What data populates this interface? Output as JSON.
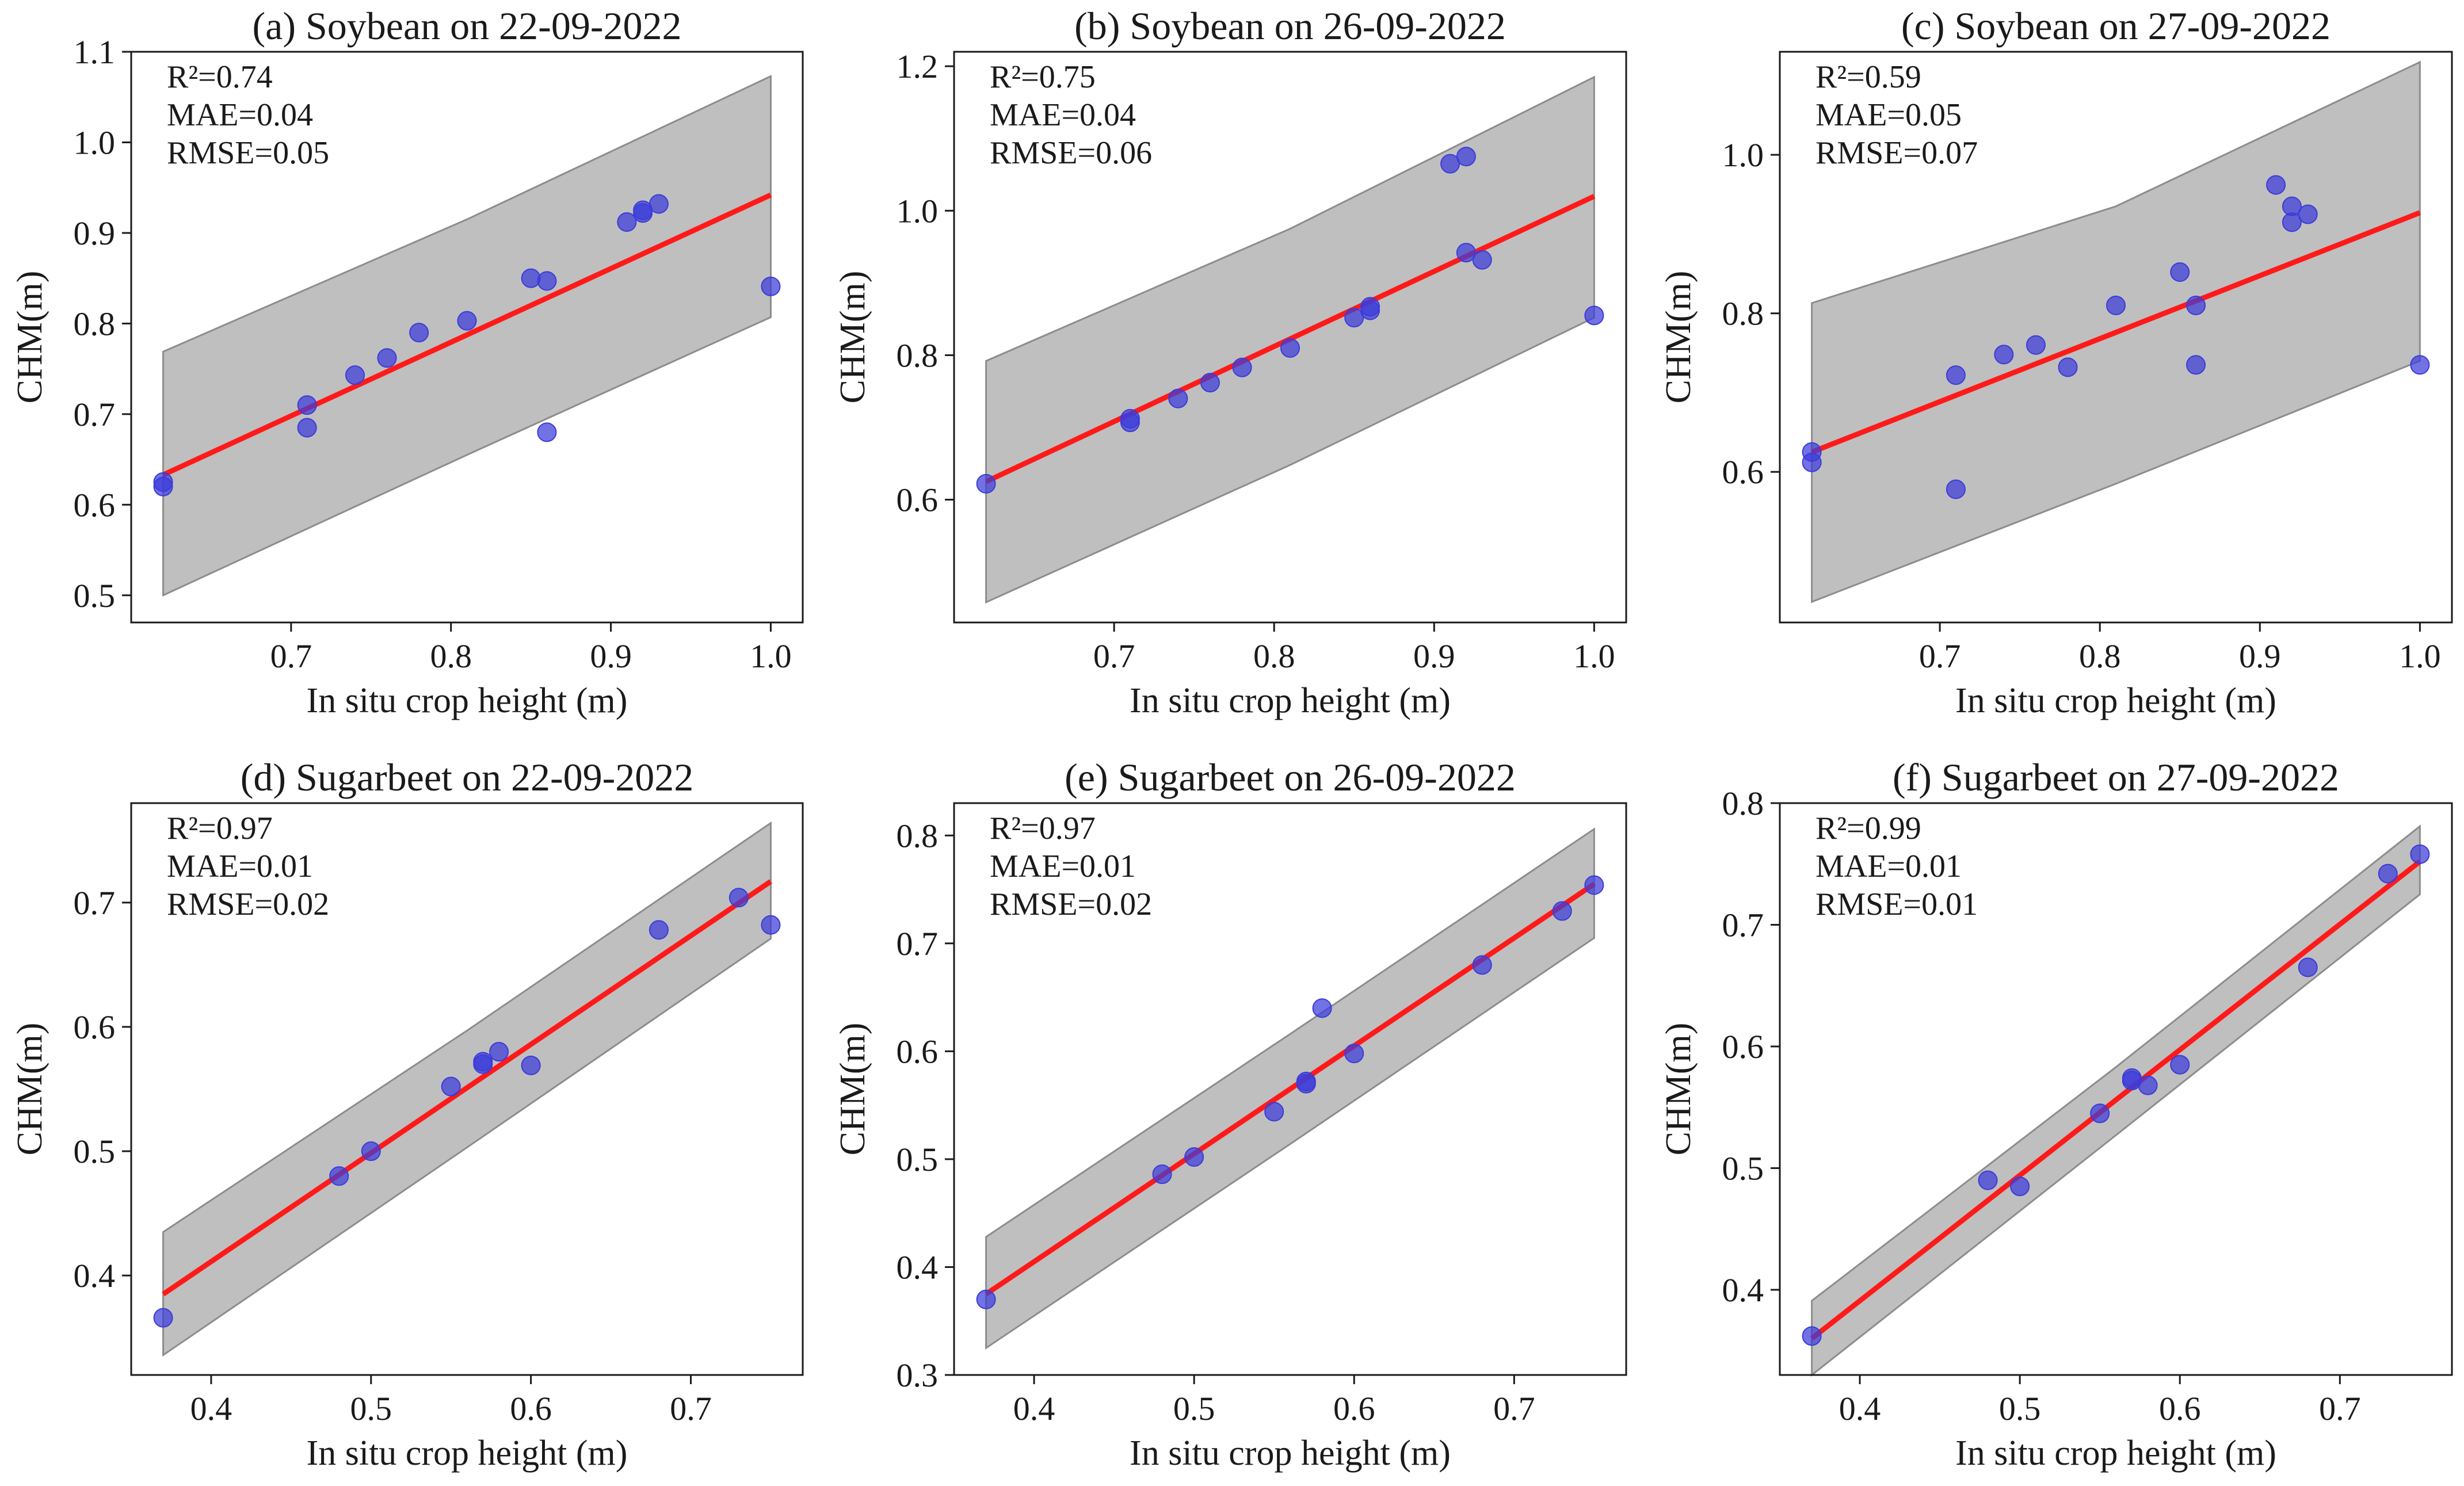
{
  "figure": {
    "colors": {
      "points": "#3b3bd9",
      "fit_line": "#ff1a1a",
      "band": "#bfbfbf",
      "band_edge": "#8c8c8c",
      "axes": "#1a1a1a"
    }
  },
  "chart_data": [
    {
      "type": "scatter",
      "title": "(a) Soybean on 22-09-2022",
      "xlabel": "In situ crop height (m)",
      "ylabel": "CHM(m)",
      "xlim": [
        0.6,
        1.02
      ],
      "ylim": [
        0.47,
        1.1
      ],
      "xticks": [
        0.7,
        0.8,
        0.9,
        1.0
      ],
      "xtick_labels": [
        "0.7",
        "0.8",
        "0.9",
        "1.0"
      ],
      "yticks": [
        0.5,
        0.6,
        0.7,
        0.8,
        0.9,
        1.0,
        1.1
      ],
      "ytick_labels": [
        "0.5",
        "0.6",
        "0.7",
        "0.8",
        "0.9",
        "1.0",
        "1.1"
      ],
      "stats": {
        "r2": "R²=0.74",
        "mae": "MAE=0.04",
        "rmse": "RMSE=0.05"
      },
      "fit": {
        "x0": 0.62,
        "y0": 0.633,
        "x1": 1.0,
        "y1": 0.942
      },
      "band": {
        "lower": [
          [
            0.62,
            0.5
          ],
          [
            0.81,
            0.655
          ],
          [
            1.0,
            0.807
          ]
        ],
        "upper": [
          [
            0.62,
            0.769
          ],
          [
            0.81,
            0.915
          ],
          [
            1.0,
            1.073
          ]
        ]
      },
      "x": [
        0.62,
        0.62,
        0.71,
        0.71,
        0.74,
        0.76,
        0.78,
        0.81,
        0.85,
        0.86,
        0.86,
        0.91,
        0.92,
        0.92,
        0.93,
        1.0
      ],
      "y": [
        0.625,
        0.62,
        0.71,
        0.685,
        0.743,
        0.762,
        0.79,
        0.803,
        0.85,
        0.847,
        0.68,
        0.912,
        0.922,
        0.925,
        0.932,
        0.841
      ]
    },
    {
      "type": "scatter",
      "title": "(b) Soybean on 26-09-2022",
      "xlabel": "In situ crop height (m)",
      "ylabel": "CHM(m)",
      "xlim": [
        0.6,
        1.02
      ],
      "ylim": [
        0.43,
        1.22
      ],
      "xticks": [
        0.7,
        0.8,
        0.9,
        1.0
      ],
      "xtick_labels": [
        "0.7",
        "0.8",
        "0.9",
        "1.0"
      ],
      "yticks": [
        0.6,
        0.8,
        1.0,
        1.2
      ],
      "ytick_labels": [
        "0.6",
        "0.8",
        "1.0",
        "1.2"
      ],
      "stats": {
        "r2": "R²=0.75",
        "mae": "MAE=0.04",
        "rmse": "RMSE=0.06"
      },
      "fit": {
        "x0": 0.62,
        "y0": 0.625,
        "x1": 1.0,
        "y1": 1.02
      },
      "band": {
        "lower": [
          [
            0.62,
            0.458
          ],
          [
            0.81,
            0.648
          ],
          [
            1.0,
            0.852
          ]
        ],
        "upper": [
          [
            0.62,
            0.792
          ],
          [
            0.81,
            0.975
          ],
          [
            1.0,
            1.185
          ]
        ]
      },
      "x": [
        0.62,
        0.71,
        0.71,
        0.74,
        0.76,
        0.78,
        0.81,
        0.85,
        0.86,
        0.86,
        0.91,
        0.92,
        0.92,
        0.93,
        1.0
      ],
      "y": [
        0.622,
        0.707,
        0.712,
        0.74,
        0.762,
        0.783,
        0.81,
        0.852,
        0.862,
        0.867,
        1.065,
        1.075,
        0.942,
        0.932,
        0.855
      ]
    },
    {
      "type": "scatter",
      "title": "(c) Soybean on 27-09-2022",
      "xlabel": "In situ crop height (m)",
      "ylabel": "CHM(m)",
      "xlim": [
        0.6,
        1.02
      ],
      "ylim": [
        0.41,
        1.13
      ],
      "xticks": [
        0.7,
        0.8,
        0.9,
        1.0
      ],
      "xtick_labels": [
        "0.7",
        "0.8",
        "0.9",
        "1.0"
      ],
      "yticks": [
        0.6,
        0.8,
        1.0
      ],
      "ytick_labels": [
        "0.6",
        "0.8",
        "1.0"
      ],
      "stats": {
        "r2": "R²=0.59",
        "mae": "MAE=0.05",
        "rmse": "RMSE=0.07"
      },
      "fit": {
        "x0": 0.62,
        "y0": 0.625,
        "x1": 1.0,
        "y1": 0.927
      },
      "band": {
        "lower": [
          [
            0.62,
            0.436
          ],
          [
            0.81,
            0.585
          ],
          [
            1.0,
            0.74
          ]
        ],
        "upper": [
          [
            0.62,
            0.813
          ],
          [
            0.81,
            0.935
          ],
          [
            1.0,
            1.117
          ]
        ]
      },
      "x": [
        0.62,
        0.62,
        0.71,
        0.71,
        0.74,
        0.76,
        0.78,
        0.81,
        0.85,
        0.86,
        0.86,
        0.91,
        0.92,
        0.92,
        0.93,
        1.0
      ],
      "y": [
        0.625,
        0.612,
        0.722,
        0.578,
        0.748,
        0.76,
        0.732,
        0.81,
        0.852,
        0.81,
        0.735,
        0.962,
        0.935,
        0.915,
        0.925,
        0.735
      ]
    },
    {
      "type": "scatter",
      "title": "(d) Sugarbeet on 22-09-2022",
      "xlabel": "In situ crop height (m)",
      "ylabel": "CHM(m)",
      "xlim": [
        0.35,
        0.77
      ],
      "ylim": [
        0.32,
        0.78
      ],
      "xticks": [
        0.4,
        0.5,
        0.6,
        0.7
      ],
      "xtick_labels": [
        "0.4",
        "0.5",
        "0.6",
        "0.7"
      ],
      "yticks": [
        0.4,
        0.5,
        0.6,
        0.7
      ],
      "ytick_labels": [
        "0.4",
        "0.5",
        "0.6",
        "0.7"
      ],
      "stats": {
        "r2": "R²=0.97",
        "mae": "MAE=0.01",
        "rmse": "RMSE=0.02"
      },
      "fit": {
        "x0": 0.37,
        "y0": 0.385,
        "x1": 0.75,
        "y1": 0.717
      },
      "band": {
        "lower": [
          [
            0.37,
            0.336
          ],
          [
            0.56,
            0.503
          ],
          [
            0.75,
            0.671
          ]
        ],
        "upper": [
          [
            0.37,
            0.435
          ],
          [
            0.56,
            0.597
          ],
          [
            0.75,
            0.764
          ]
        ]
      },
      "x": [
        0.37,
        0.48,
        0.5,
        0.55,
        0.57,
        0.57,
        0.58,
        0.6,
        0.68,
        0.73,
        0.75
      ],
      "y": [
        0.366,
        0.48,
        0.5,
        0.552,
        0.57,
        0.572,
        0.58,
        0.569,
        0.678,
        0.704,
        0.682
      ]
    },
    {
      "type": "scatter",
      "title": "(e) Sugarbeet on 26-09-2022",
      "xlabel": "In situ crop height (m)",
      "ylabel": "CHM(m)",
      "xlim": [
        0.35,
        0.77
      ],
      "ylim": [
        0.3,
        0.83
      ],
      "xticks": [
        0.4,
        0.5,
        0.6,
        0.7
      ],
      "xtick_labels": [
        "0.4",
        "0.5",
        "0.6",
        "0.7"
      ],
      "yticks": [
        0.3,
        0.4,
        0.5,
        0.6,
        0.7,
        0.8
      ],
      "ytick_labels": [
        "0.3",
        "0.4",
        "0.5",
        "0.6",
        "0.7",
        "0.8"
      ],
      "stats": {
        "r2": "R²=0.97",
        "mae": "MAE=0.01",
        "rmse": "RMSE=0.02"
      },
      "fit": {
        "x0": 0.37,
        "y0": 0.375,
        "x1": 0.75,
        "y1": 0.755
      },
      "band": {
        "lower": [
          [
            0.37,
            0.325
          ],
          [
            0.56,
            0.514
          ],
          [
            0.75,
            0.705
          ]
        ],
        "upper": [
          [
            0.37,
            0.428
          ],
          [
            0.56,
            0.616
          ],
          [
            0.75,
            0.806
          ]
        ]
      },
      "x": [
        0.37,
        0.48,
        0.5,
        0.55,
        0.57,
        0.57,
        0.58,
        0.6,
        0.68,
        0.73,
        0.75
      ],
      "y": [
        0.37,
        0.486,
        0.502,
        0.544,
        0.57,
        0.572,
        0.64,
        0.598,
        0.68,
        0.73,
        0.754
      ]
    },
    {
      "type": "scatter",
      "title": "(f) Sugarbeet on 27-09-2022",
      "xlabel": "In situ crop height (m)",
      "ylabel": "CHM(m)",
      "xlim": [
        0.35,
        0.77
      ],
      "ylim": [
        0.33,
        0.8
      ],
      "xticks": [
        0.4,
        0.5,
        0.6,
        0.7
      ],
      "xtick_labels": [
        "0.4",
        "0.5",
        "0.6",
        "0.7"
      ],
      "yticks": [
        0.4,
        0.5,
        0.6,
        0.7,
        0.8
      ],
      "ytick_labels": [
        "0.4",
        "0.5",
        "0.6",
        "0.7",
        "0.8"
      ],
      "stats": {
        "r2": "R²=0.99",
        "mae": "MAE=0.01",
        "rmse": "RMSE=0.01"
      },
      "fit": {
        "x0": 0.37,
        "y0": 0.36,
        "x1": 0.75,
        "y1": 0.752
      },
      "band": {
        "lower": [
          [
            0.37,
            0.33
          ],
          [
            0.56,
            0.527
          ],
          [
            0.75,
            0.725
          ]
        ],
        "upper": [
          [
            0.37,
            0.391
          ],
          [
            0.56,
            0.583
          ],
          [
            0.75,
            0.781
          ]
        ]
      },
      "x": [
        0.37,
        0.48,
        0.5,
        0.55,
        0.57,
        0.57,
        0.58,
        0.6,
        0.68,
        0.73,
        0.75
      ],
      "y": [
        0.362,
        0.49,
        0.485,
        0.545,
        0.572,
        0.574,
        0.568,
        0.585,
        0.665,
        0.742,
        0.758
      ]
    }
  ]
}
